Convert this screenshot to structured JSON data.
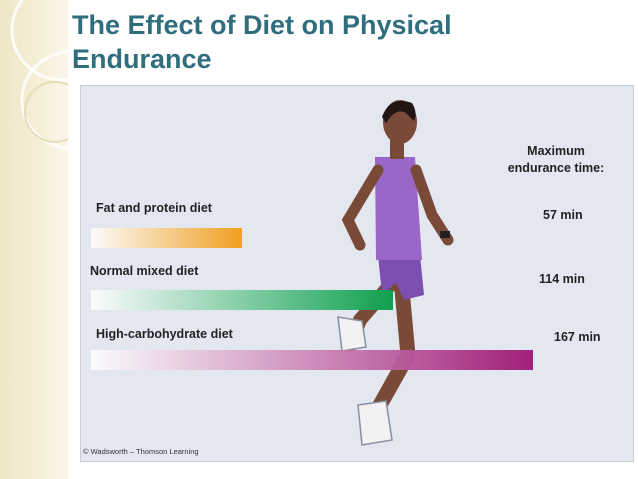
{
  "title": "The Effect of Diet on Physical Endurance",
  "chart_data": {
    "type": "bar",
    "orientation": "horizontal",
    "categories": [
      "Fat and protein diet",
      "Normal mixed diet",
      "High-carbohydrate diet"
    ],
    "values": [
      57,
      114,
      167
    ],
    "units": "min",
    "value_labels": [
      "57 min",
      "114 min",
      "167 min"
    ],
    "value_header": "Maximum endurance time:",
    "colors": [
      "#f0a020",
      "#10a050",
      "#a0207a"
    ]
  },
  "credit": "© Wadsworth – Thomson Learning"
}
